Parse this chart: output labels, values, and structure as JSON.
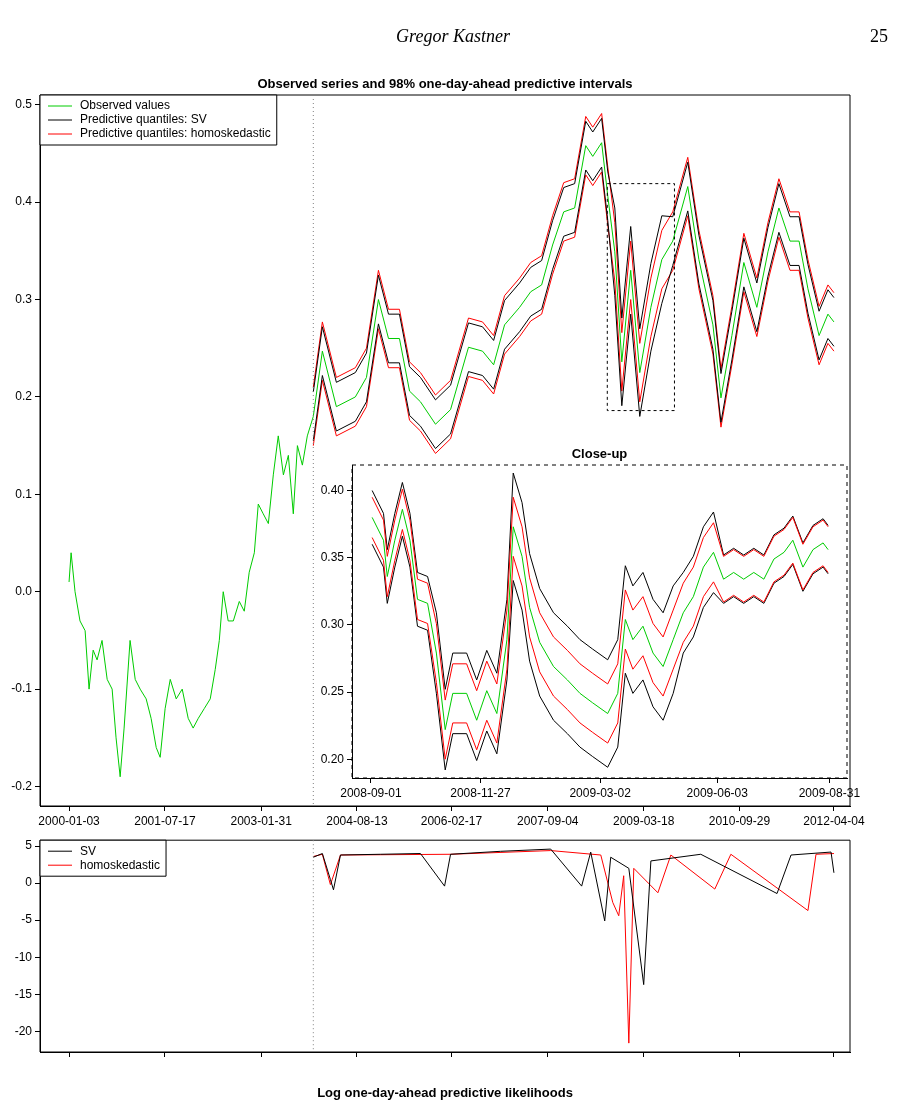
{
  "chart_data": [
    {
      "type": "line",
      "title": "Observed series and 98% one-day-ahead predictive intervals",
      "annotations": [
        "Gregor Kastner",
        "25"
      ],
      "legend": "top left",
      "xlim": [
        "1999-07-17",
        "2012-07-07"
      ],
      "xticks": [
        "2000-01-03",
        "2001-07-17",
        "2003-01-31",
        "2004-08-13",
        "2006-02-17",
        "2007-09-04",
        "2009-03-18",
        "2010-09-29",
        "2012-04-04"
      ],
      "ylim": [
        -0.22,
        0.51
      ],
      "yticks": [
        -0.2,
        -0.1,
        {
          "value": 0,
          "label": "0.0"
        },
        0.1,
        0.2,
        0.3,
        0.4,
        0.5
      ],
      "ref_lines": [
        {
          "axis": "x",
          "value": "2003-12-02",
          "color": "#808080",
          "line_style": "dotted"
        }
      ],
      "series": [
        {
          "name": "Observed values",
          "color": "#00cc00",
          "x": [
            "2000-01-03",
            "2000-01-15",
            "2000-02-07",
            "2000-03-07",
            "2000-04-06",
            "2000-04-29",
            "2000-05-23",
            "2000-06-15",
            "2000-07-14",
            "2000-08-13",
            "2000-09-11",
            "2000-10-04",
            "2000-10-28",
            "2000-11-20",
            "2000-12-25",
            "2001-01-24",
            "2001-02-22",
            "2001-03-29",
            "2001-04-27",
            "2001-05-27",
            "2001-06-19",
            "2001-07-18",
            "2001-08-17",
            "2001-09-21",
            "2001-10-26",
            "2001-11-30",
            "2001-12-29",
            "2002-01-28",
            "2002-03-04",
            "2002-04-08",
            "2002-05-07",
            "2002-05-31",
            "2002-06-23",
            "2002-07-22",
            "2002-08-21",
            "2002-09-25",
            "2002-10-24",
            "2002-11-22",
            "2002-12-22",
            "2003-01-14",
            "2003-02-12",
            "2003-03-14",
            "2003-04-12",
            "2003-05-11",
            "2003-06-10",
            "2003-07-09",
            "2003-08-07",
            "2003-08-31",
            "2003-09-29",
            "2003-10-28",
            "2003-12-02",
            "2004-01-24",
            "2004-04-15",
            "2004-08-04",
            "2004-10-08",
            "2004-12-17",
            "2005-02-14",
            "2005-04-19",
            "2005-06-17",
            "2005-08-20",
            "2005-11-16",
            "2006-02-12",
            "2006-05-28",
            "2006-08-18",
            "2006-10-22",
            "2006-12-25",
            "2007-03-23",
            "2007-05-27",
            "2007-07-30",
            "2007-10-02",
            "2007-12-06",
            "2008-02-08",
            "2008-04-13",
            "2008-05-24",
            "2008-07-15",
            "2008-08-20",
            "2008-09-30",
            "2008-11-10",
            "2009-01-01",
            "2009-02-23",
            "2009-04-29",
            "2009-07-02",
            "2009-09-04",
            "2009-12-01",
            "2010-02-04",
            "2010-04-27",
            "2010-06-13",
            "2010-08-16",
            "2010-10-25",
            "2011-01-09",
            "2011-03-15",
            "2011-05-18",
            "2011-07-22",
            "2011-09-13",
            "2011-11-04",
            "2012-01-08",
            "2012-02-29",
            "2012-04-04"
          ],
          "values": [
            0.01,
            0.04,
            0.0,
            -0.03,
            -0.04,
            -0.1,
            -0.06,
            -0.07,
            -0.05,
            -0.09,
            -0.1,
            -0.15,
            -0.19,
            -0.14,
            -0.05,
            -0.09,
            -0.1,
            -0.11,
            -0.13,
            -0.16,
            -0.17,
            -0.12,
            -0.09,
            -0.11,
            -0.1,
            -0.13,
            -0.14,
            -0.13,
            -0.12,
            -0.11,
            -0.08,
            -0.05,
            0.0,
            -0.03,
            -0.03,
            -0.01,
            -0.02,
            0.02,
            0.04,
            0.09,
            0.08,
            0.07,
            0.12,
            0.16,
            0.12,
            0.14,
            0.08,
            0.15,
            0.13,
            0.16,
            0.18,
            0.247,
            0.19,
            0.2,
            0.22,
            0.3,
            0.26,
            0.26,
            0.206,
            0.195,
            0.172,
            0.187,
            0.251,
            0.247,
            0.233,
            0.274,
            0.292,
            0.308,
            0.315,
            0.356,
            0.39,
            0.394,
            0.458,
            0.447,
            0.461,
            0.406,
            0.349,
            0.236,
            0.33,
            0.225,
            0.292,
            0.341,
            0.36,
            0.416,
            0.341,
            0.274,
            0.199,
            0.263,
            0.338,
            0.292,
            0.349,
            0.394,
            0.36,
            0.36,
            0.311,
            0.263,
            0.285,
            0.277
          ]
        },
        {
          "name": "Predictive quantiles: SV",
          "color": "#000000",
          "x": [
            "2003-12-02",
            "2004-01-24",
            "2004-04-15",
            "2004-08-04",
            "2004-10-08",
            "2004-12-17",
            "2005-02-14",
            "2005-04-19",
            "2005-06-17",
            "2005-08-20",
            "2005-11-16",
            "2006-02-12",
            "2006-05-28",
            "2006-08-18",
            "2006-10-22",
            "2006-12-25",
            "2007-03-23",
            "2007-05-27",
            "2007-07-30",
            "2007-10-02",
            "2007-12-06",
            "2008-02-08",
            "2008-04-13",
            "2008-05-24",
            "2008-07-15",
            "2008-08-20",
            "2008-09-30",
            "2008-11-10",
            "2009-01-01",
            "2009-02-23",
            "2009-04-29",
            "2009-07-02",
            "2009-09-04",
            "2009-12-01",
            "2010-02-04",
            "2010-04-27",
            "2010-06-13",
            "2010-08-16",
            "2010-10-25",
            "2011-01-09",
            "2011-03-15",
            "2011-05-18",
            "2011-07-22",
            "2011-09-13",
            "2011-11-04",
            "2012-01-08",
            "2012-02-29",
            "2012-04-04"
          ],
          "values": [
            0.155,
            0.222,
            0.165,
            0.175,
            0.195,
            0.275,
            0.235,
            0.235,
            0.181,
            0.17,
            0.147,
            0.162,
            0.226,
            0.222,
            0.208,
            0.249,
            0.267,
            0.283,
            0.29,
            0.331,
            0.365,
            0.369,
            0.433,
            0.422,
            0.436,
            0.381,
            0.304,
            0.191,
            0.285,
            0.18,
            0.247,
            0.296,
            0.335,
            0.391,
            0.316,
            0.249,
            0.174,
            0.238,
            0.313,
            0.267,
            0.324,
            0.369,
            0.335,
            0.335,
            0.286,
            0.238,
            0.26,
            0.252
          ]
        },
        {
          "color": "#000000",
          "x": [
            "2003-12-02",
            "2004-01-24",
            "2004-04-15",
            "2004-08-04",
            "2004-10-08",
            "2004-12-17",
            "2005-02-14",
            "2005-04-19",
            "2005-06-17",
            "2005-08-20",
            "2005-11-16",
            "2006-02-12",
            "2006-05-28",
            "2006-08-18",
            "2006-10-22",
            "2006-12-25",
            "2007-03-23",
            "2007-05-27",
            "2007-07-30",
            "2007-10-02",
            "2007-12-06",
            "2008-02-08",
            "2008-04-13",
            "2008-05-24",
            "2008-07-15",
            "2008-08-20",
            "2008-09-30",
            "2008-11-10",
            "2009-01-01",
            "2009-02-23",
            "2009-04-29",
            "2009-07-02",
            "2009-09-04",
            "2009-12-01",
            "2010-02-04",
            "2010-04-27",
            "2010-06-13",
            "2010-08-16",
            "2010-10-25",
            "2011-01-09",
            "2011-03-15",
            "2011-05-18",
            "2011-07-22",
            "2011-09-13",
            "2011-11-04",
            "2012-01-08",
            "2012-02-29",
            "2012-04-04"
          ],
          "values": [
            0.205,
            0.272,
            0.215,
            0.225,
            0.245,
            0.325,
            0.285,
            0.285,
            0.231,
            0.22,
            0.197,
            0.212,
            0.276,
            0.272,
            0.258,
            0.299,
            0.317,
            0.333,
            0.34,
            0.381,
            0.415,
            0.419,
            0.483,
            0.472,
            0.486,
            0.431,
            0.394,
            0.281,
            0.375,
            0.27,
            0.337,
            0.386,
            0.385,
            0.441,
            0.366,
            0.299,
            0.224,
            0.288,
            0.363,
            0.317,
            0.374,
            0.419,
            0.385,
            0.385,
            0.336,
            0.288,
            0.31,
            0.302
          ]
        },
        {
          "name": "Predictive quantiles: homoskedastic",
          "color": "#ff0000",
          "x": [
            "2003-12-02",
            "2004-01-24",
            "2004-04-15",
            "2004-08-04",
            "2004-10-08",
            "2004-12-17",
            "2005-02-14",
            "2005-04-19",
            "2005-06-17",
            "2005-08-20",
            "2005-11-16",
            "2006-02-12",
            "2006-05-28",
            "2006-08-18",
            "2006-10-22",
            "2006-12-25",
            "2007-03-23",
            "2007-05-27",
            "2007-07-30",
            "2007-10-02",
            "2007-12-06",
            "2008-02-08",
            "2008-04-13",
            "2008-05-24",
            "2008-07-15",
            "2008-08-20",
            "2008-09-30",
            "2008-11-10",
            "2009-01-01",
            "2009-02-23",
            "2009-04-29",
            "2009-07-02",
            "2009-09-04",
            "2009-12-01",
            "2010-02-04",
            "2010-04-27",
            "2010-06-13",
            "2010-08-16",
            "2010-10-25",
            "2011-01-09",
            "2011-03-15",
            "2011-05-18",
            "2011-07-22",
            "2011-09-13",
            "2011-11-04",
            "2012-01-08",
            "2012-02-29",
            "2012-04-04"
          ],
          "values": [
            0.15,
            0.217,
            0.16,
            0.17,
            0.19,
            0.27,
            0.23,
            0.23,
            0.176,
            0.165,
            0.142,
            0.157,
            0.221,
            0.217,
            0.203,
            0.244,
            0.262,
            0.278,
            0.285,
            0.326,
            0.36,
            0.364,
            0.428,
            0.417,
            0.431,
            0.376,
            0.319,
            0.206,
            0.3,
            0.195,
            0.262,
            0.311,
            0.33,
            0.386,
            0.311,
            0.244,
            0.169,
            0.233,
            0.308,
            0.262,
            0.319,
            0.364,
            0.33,
            0.33,
            0.281,
            0.233,
            0.255,
            0.247
          ]
        },
        {
          "color": "#ff0000",
          "x": [
            "2003-12-02",
            "2004-01-24",
            "2004-04-15",
            "2004-08-04",
            "2004-10-08",
            "2004-12-17",
            "2005-02-14",
            "2005-04-19",
            "2005-06-17",
            "2005-08-20",
            "2005-11-16",
            "2006-02-12",
            "2006-05-28",
            "2006-08-18",
            "2006-10-22",
            "2006-12-25",
            "2007-03-23",
            "2007-05-27",
            "2007-07-30",
            "2007-10-02",
            "2007-12-06",
            "2008-02-08",
            "2008-04-13",
            "2008-05-24",
            "2008-07-15",
            "2008-08-20",
            "2008-09-30",
            "2008-11-10",
            "2009-01-01",
            "2009-02-23",
            "2009-04-29",
            "2009-07-02",
            "2009-09-04",
            "2009-12-01",
            "2010-02-04",
            "2010-04-27",
            "2010-06-13",
            "2010-08-16",
            "2010-10-25",
            "2011-01-09",
            "2011-03-15",
            "2011-05-18",
            "2011-07-22",
            "2011-09-13",
            "2011-11-04",
            "2012-01-08",
            "2012-02-29",
            "2012-04-04"
          ],
          "values": [
            0.21,
            0.277,
            0.22,
            0.23,
            0.25,
            0.33,
            0.29,
            0.29,
            0.236,
            0.225,
            0.202,
            0.217,
            0.281,
            0.277,
            0.263,
            0.304,
            0.322,
            0.338,
            0.345,
            0.386,
            0.42,
            0.424,
            0.488,
            0.477,
            0.491,
            0.436,
            0.379,
            0.266,
            0.36,
            0.255,
            0.322,
            0.371,
            0.39,
            0.446,
            0.371,
            0.304,
            0.229,
            0.293,
            0.368,
            0.322,
            0.379,
            0.424,
            0.39,
            0.39,
            0.341,
            0.293,
            0.315,
            0.307
          ]
        }
      ]
    },
    {
      "type": "line",
      "title": "Close-up",
      "xlim": [
        "2008-08-17",
        "2009-09-14"
      ],
      "xticks": [
        "2008-09-01",
        "2008-11-27",
        "2009-03-02",
        "2009-06-03",
        "2009-08-31"
      ],
      "ylim": [
        0.186,
        0.419
      ],
      "yticks": [
        {
          "value": 0.2,
          "label": "0.20"
        },
        0.25,
        {
          "value": 0.3,
          "label": "0.30"
        },
        0.35,
        {
          "value": 0.4,
          "label": "0.40"
        }
      ],
      "x": [
        "2008-09-02",
        "2008-09-11",
        "2008-09-14",
        "2008-09-20",
        "2008-09-26",
        "2008-10-02",
        "2008-10-08",
        "2008-10-16",
        "2008-10-23",
        "2008-10-30",
        "2008-11-05",
        "2008-11-16",
        "2008-11-24",
        "2008-12-02",
        "2008-12-10",
        "2008-12-18",
        "2008-12-23",
        "2008-12-30",
        "2009-01-05",
        "2009-01-13",
        "2009-01-24",
        "2009-02-04",
        "2009-02-14",
        "2009-02-24",
        "2009-03-08",
        "2009-03-16",
        "2009-03-22",
        "2009-03-28",
        "2009-04-05",
        "2009-04-13",
        "2009-04-21",
        "2009-04-29",
        "2009-05-07",
        "2009-05-15",
        "2009-05-23",
        "2009-05-31",
        "2009-06-08",
        "2009-06-16",
        "2009-06-24",
        "2009-07-02",
        "2009-07-10",
        "2009-07-18",
        "2009-07-26",
        "2009-08-02",
        "2009-08-10",
        "2009-08-18",
        "2009-08-26",
        "2009-08-30"
      ],
      "series": [
        {
          "color": "#00cc00",
          "values": [
            0.38,
            0.363,
            0.336,
            0.363,
            0.386,
            0.363,
            0.319,
            0.316,
            0.279,
            0.222,
            0.249,
            0.249,
            0.229,
            0.251,
            0.234,
            0.289,
            0.373,
            0.351,
            0.313,
            0.287,
            0.269,
            0.259,
            0.249,
            0.242,
            0.234,
            0.249,
            0.304,
            0.289,
            0.299,
            0.279,
            0.269,
            0.289,
            0.309,
            0.321,
            0.343,
            0.354,
            0.334,
            0.339,
            0.334,
            0.339,
            0.334,
            0.349,
            0.354,
            0.363,
            0.343,
            0.356,
            0.361,
            0.356
          ]
        },
        {
          "color": "#ff0000",
          "values": [
            0.365,
            0.348,
            0.321,
            0.348,
            0.371,
            0.348,
            0.304,
            0.301,
            0.257,
            0.2,
            0.227,
            0.227,
            0.207,
            0.229,
            0.212,
            0.267,
            0.351,
            0.329,
            0.291,
            0.265,
            0.247,
            0.237,
            0.227,
            0.22,
            0.212,
            0.227,
            0.282,
            0.267,
            0.277,
            0.257,
            0.247,
            0.267,
            0.287,
            0.299,
            0.321,
            0.332,
            0.317,
            0.322,
            0.317,
            0.322,
            0.317,
            0.332,
            0.337,
            0.346,
            0.326,
            0.339,
            0.344,
            0.339
          ]
        },
        {
          "color": "#ff0000",
          "values": [
            0.395,
            0.378,
            0.351,
            0.378,
            0.401,
            0.378,
            0.334,
            0.331,
            0.301,
            0.244,
            0.271,
            0.271,
            0.251,
            0.273,
            0.256,
            0.311,
            0.395,
            0.373,
            0.335,
            0.309,
            0.291,
            0.281,
            0.271,
            0.264,
            0.256,
            0.271,
            0.326,
            0.311,
            0.321,
            0.301,
            0.291,
            0.311,
            0.331,
            0.343,
            0.365,
            0.376,
            0.351,
            0.356,
            0.351,
            0.356,
            0.351,
            0.366,
            0.371,
            0.38,
            0.36,
            0.373,
            0.378,
            0.373
          ]
        },
        {
          "color": "#000000",
          "values": [
            0.36,
            0.343,
            0.316,
            0.343,
            0.366,
            0.343,
            0.299,
            0.296,
            0.249,
            0.192,
            0.219,
            0.219,
            0.199,
            0.221,
            0.204,
            0.259,
            0.333,
            0.311,
            0.273,
            0.247,
            0.229,
            0.219,
            0.209,
            0.202,
            0.194,
            0.209,
            0.264,
            0.249,
            0.259,
            0.239,
            0.229,
            0.249,
            0.279,
            0.291,
            0.313,
            0.324,
            0.316,
            0.321,
            0.316,
            0.321,
            0.316,
            0.331,
            0.336,
            0.345,
            0.325,
            0.338,
            0.343,
            0.338
          ]
        },
        {
          "color": "#000000",
          "values": [
            0.4,
            0.383,
            0.356,
            0.383,
            0.406,
            0.383,
            0.339,
            0.336,
            0.309,
            0.252,
            0.279,
            0.279,
            0.259,
            0.281,
            0.264,
            0.319,
            0.413,
            0.391,
            0.353,
            0.327,
            0.309,
            0.299,
            0.289,
            0.282,
            0.274,
            0.289,
            0.344,
            0.329,
            0.339,
            0.319,
            0.309,
            0.329,
            0.339,
            0.351,
            0.373,
            0.384,
            0.352,
            0.357,
            0.352,
            0.357,
            0.352,
            0.367,
            0.372,
            0.381,
            0.361,
            0.374,
            0.379,
            0.374
          ]
        }
      ]
    },
    {
      "type": "line",
      "xlabel": "Log one-day-ahead predictive likelihoods",
      "legend": "top left",
      "tick_labels": "y",
      "xlim": [
        "1999-07-17",
        "2012-07-07"
      ],
      "xticks": [
        {
          "value": "2000-01-03",
          "label": null
        },
        {
          "value": "2001-07-17",
          "label": null
        },
        {
          "value": "2003-01-31",
          "label": null
        },
        {
          "value": "2004-08-13",
          "label": null
        },
        {
          "value": "2006-02-17",
          "label": null
        },
        {
          "value": "2007-09-04",
          "label": null
        },
        {
          "value": "2009-03-18",
          "label": null
        },
        {
          "value": "2010-09-29",
          "label": null
        },
        {
          "value": "2012-04-04",
          "label": null
        }
      ],
      "ylim": [
        -22.8,
        5.8
      ],
      "yticks": [
        -20,
        -15,
        -10,
        -5,
        0,
        5
      ],
      "ref_lines": [
        {
          "axis": "x",
          "value": "2003-12-02",
          "color": "#808080",
          "line_style": "dotted"
        }
      ],
      "series": [
        {
          "name": "SV",
          "color": "#000000",
          "x": [
            "2003-12-02",
            "2004-01-24",
            "2004-03-11",
            "2004-03-29",
            "2004-05-09",
            "2004-12-29",
            "2005-08-20",
            "2006-01-08",
            "2006-02-12",
            "2006-12-02",
            "2007-09-21",
            "2008-03-20",
            "2008-05-12",
            "2008-08-02",
            "2008-09-06",
            "2008-12-21",
            "2009-03-18",
            "2009-04-29",
            "2010-02-15",
            "2011-05-07",
            "2011-07-28",
            "2012-03-18",
            "2012-04-04"
          ],
          "values": [
            3.5,
            4.0,
            0.5,
            -0.9,
            3.8,
            3.9,
            4.0,
            -0.4,
            3.9,
            4.3,
            4.6,
            -0.4,
            4.2,
            -5.1,
            3.5,
            2.0,
            -13.7,
            3.0,
            3.9,
            -1.4,
            3.8,
            4.2,
            1.4
          ]
        },
        {
          "name": "homoskedastic",
          "color": "#ff0000",
          "x": [
            "2003-12-02",
            "2004-01-24",
            "2004-03-11",
            "2004-05-09",
            "2006-02-12",
            "2007-09-21",
            "2008-07-10",
            "2008-09-18",
            "2008-10-23",
            "2008-11-21",
            "2008-12-21",
            "2009-01-19",
            "2009-06-09",
            "2009-08-24",
            "2010-05-08",
            "2010-08-10",
            "2011-11-04",
            "2011-12-21",
            "2012-04-04"
          ],
          "values": [
            3.6,
            3.9,
            -0.2,
            3.8,
            3.9,
            4.4,
            3.8,
            -2.6,
            -4.4,
            1.0,
            -21.6,
            2.0,
            -1.3,
            3.8,
            -0.8,
            3.9,
            -3.7,
            3.9,
            4.0
          ]
        }
      ]
    }
  ]
}
